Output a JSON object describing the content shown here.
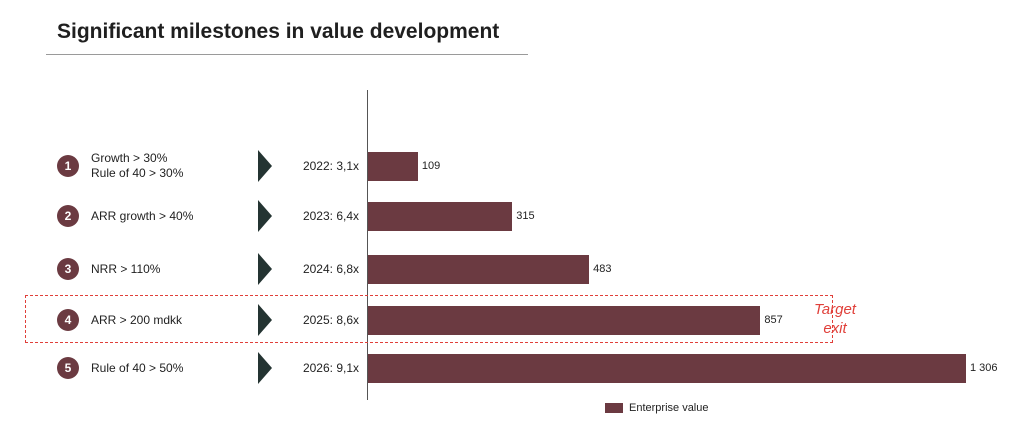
{
  "title": "Significant milestones in value development",
  "milestones": [
    {
      "number": "1",
      "criteria": [
        "Growth > 30%",
        "Rule of 40 > 30%"
      ],
      "year_label": "2022: 3,1x"
    },
    {
      "number": "2",
      "criteria": [
        "ARR growth > 40%"
      ],
      "year_label": "2023: 6,4x"
    },
    {
      "number": "3",
      "criteria": [
        "NRR > 110%"
      ],
      "year_label": "2024: 6,8x"
    },
    {
      "number": "4",
      "criteria": [
        "ARR > 200 mdkk"
      ],
      "year_label": "2025: 8,6x"
    },
    {
      "number": "5",
      "criteria": [
        "Rule of 40 > 50%"
      ],
      "year_label": "2026: 9,1x"
    }
  ],
  "target": {
    "line1": "Target",
    "line2": "exit"
  },
  "colors": {
    "bar": "#6b3a41",
    "arrow": "#243432",
    "target": "#e0403a"
  },
  "chart_data": {
    "type": "bar",
    "orientation": "horizontal",
    "categories": [
      "2022: 3,1x",
      "2023: 6,4x",
      "2024: 6,8x",
      "2025: 8,6x",
      "2026: 9,1x"
    ],
    "series": [
      {
        "name": "Enterprise value",
        "values": [
          109,
          315,
          483,
          857,
          1306
        ],
        "labels": [
          "109",
          "315",
          "483",
          "857",
          "1 306"
        ]
      }
    ],
    "xlim": [
      0,
      1306
    ],
    "grid": false,
    "legend": "bottom"
  }
}
